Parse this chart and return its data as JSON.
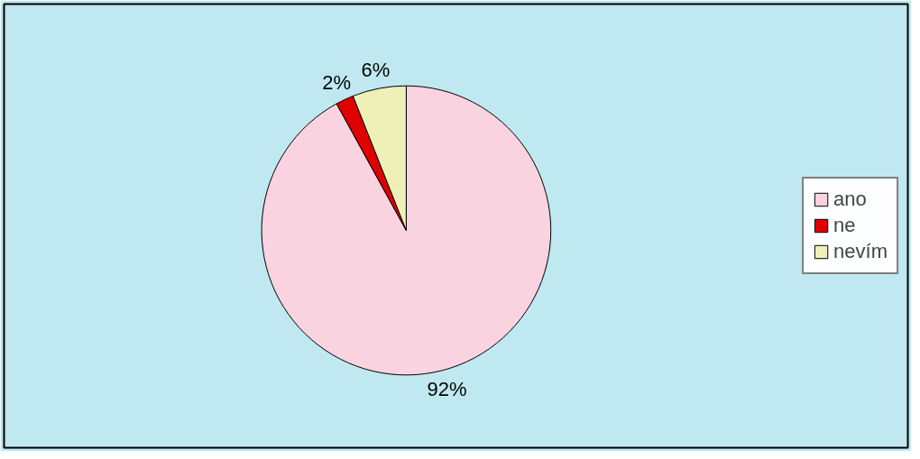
{
  "chart_data": {
    "type": "pie",
    "categories": [
      "ano",
      "ne",
      "nevím"
    ],
    "values": [
      92,
      2,
      6
    ],
    "colors": [
      "#f9d3df",
      "#e00000",
      "#eef0b8"
    ],
    "value_labels": [
      "92%",
      "2%",
      "6%"
    ],
    "legend": "right"
  }
}
